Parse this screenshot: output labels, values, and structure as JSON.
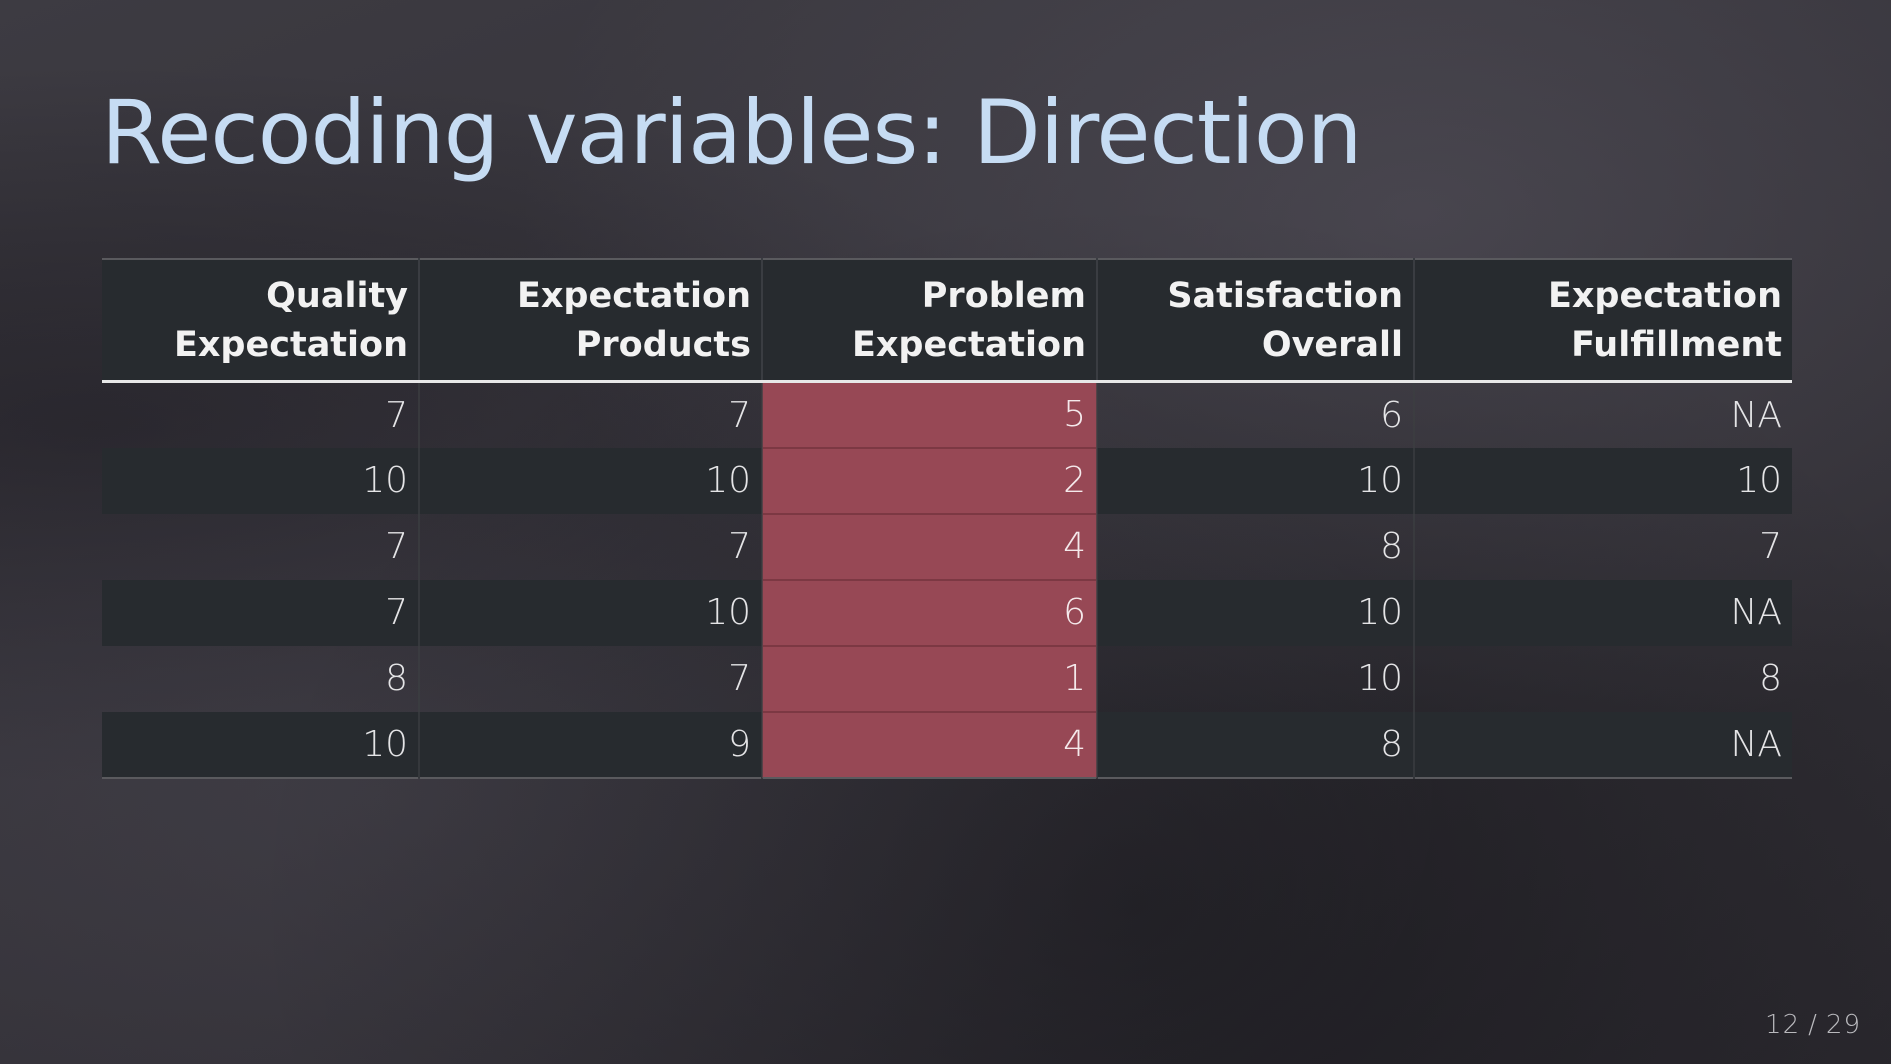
{
  "slide": {
    "title": "Recoding variables: Direction",
    "page": {
      "current": "12",
      "separator": "/",
      "total": "29"
    }
  },
  "table": {
    "headers": [
      {
        "line1": "Quality",
        "line2": "Expectation"
      },
      {
        "line1": "Expectation",
        "line2": "Products"
      },
      {
        "line1": "Problem",
        "line2": "Expectation"
      },
      {
        "line1": "Satisfaction",
        "line2": "Overall"
      },
      {
        "line1": "Expectation",
        "line2": "Fulfillment"
      }
    ],
    "highlighted_column": "Problem Expectation",
    "highlight_color": "#974855",
    "rows": [
      [
        "7",
        "7",
        "5",
        "6",
        "NA"
      ],
      [
        "10",
        "10",
        "2",
        "10",
        "10"
      ],
      [
        "7",
        "7",
        "4",
        "8",
        "7"
      ],
      [
        "7",
        "10",
        "6",
        "10",
        "NA"
      ],
      [
        "8",
        "7",
        "1",
        "10",
        "8"
      ],
      [
        "10",
        "9",
        "4",
        "8",
        "NA"
      ]
    ]
  },
  "colors": {
    "title": "#c6dcf3",
    "background": "#35333a",
    "stripe": "#272b2f"
  }
}
